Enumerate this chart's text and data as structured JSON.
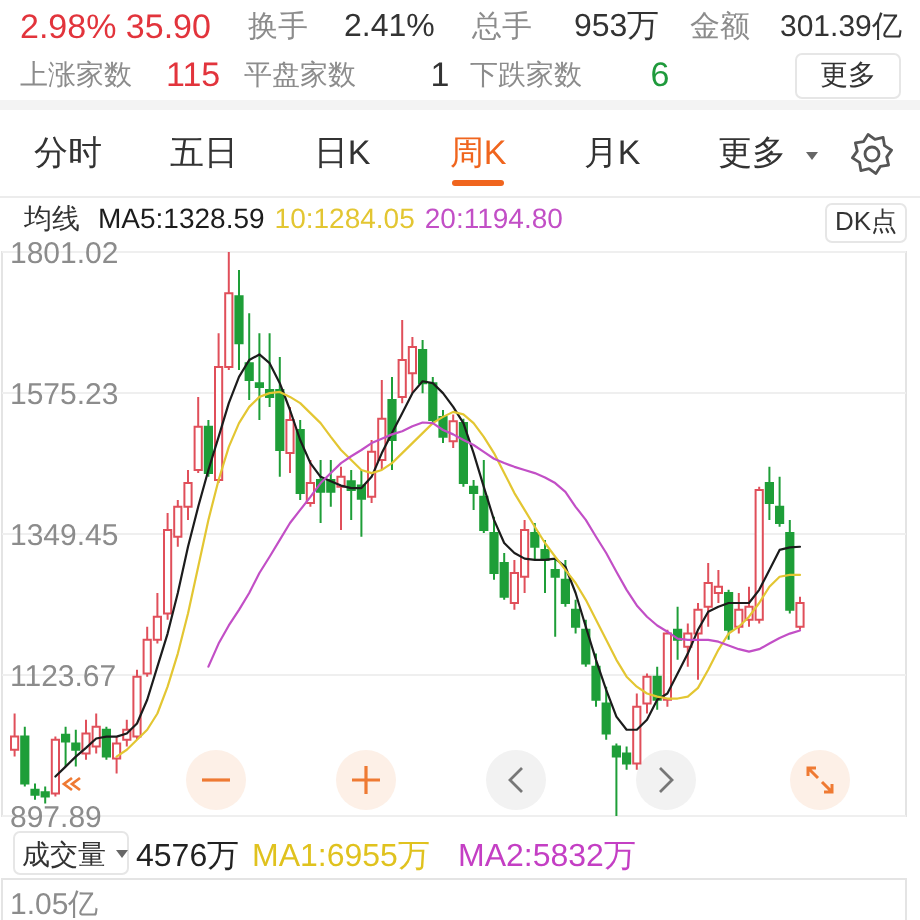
{
  "chart_data": {
    "type": "candlestick",
    "categories": [
      null,
      null,
      null,
      null,
      null,
      null,
      null,
      null,
      null,
      null,
      null,
      null,
      null,
      null,
      null,
      null,
      null,
      null,
      null,
      null,
      null,
      null,
      null,
      null,
      null,
      null,
      null,
      null,
      null,
      null,
      null,
      null,
      null,
      null,
      null,
      null,
      null,
      null,
      null,
      null,
      null,
      null,
      null,
      null,
      null,
      null,
      null,
      null,
      null,
      null,
      null,
      null,
      null,
      null,
      null,
      null,
      null,
      null,
      null,
      null,
      null,
      null,
      null,
      null,
      null,
      null,
      null,
      null,
      null,
      null,
      null,
      null,
      null,
      null,
      null,
      null,
      null,
      null
    ],
    "ohlc": [
      [
        1004,
        1062,
        993,
        1025
      ],
      [
        1025,
        1041,
        945,
        950
      ],
      [
        940,
        950,
        924,
        932
      ],
      [
        936,
        945,
        918,
        929
      ],
      [
        934,
        1025,
        929,
        1020
      ],
      [
        1028,
        1041,
        977,
        1017
      ],
      [
        1014,
        1036,
        977,
        1004
      ],
      [
        998,
        1052,
        988,
        1030
      ],
      [
        1009,
        1062,
        998,
        1041
      ],
      [
        1036,
        1041,
        988,
        993
      ],
      [
        990,
        1025,
        966,
        1014
      ],
      [
        1020,
        1052,
        1009,
        1036
      ],
      [
        1025,
        1132,
        1020,
        1121
      ],
      [
        1126,
        1201,
        1121,
        1180
      ],
      [
        1180,
        1255,
        1174,
        1217
      ],
      [
        1222,
        1383,
        1212,
        1356
      ],
      [
        1345,
        1404,
        1329,
        1393
      ],
      [
        1393,
        1452,
        1372,
        1431
      ],
      [
        1452,
        1569,
        1447,
        1521
      ],
      [
        1521,
        1532,
        1441,
        1447
      ],
      [
        1436,
        1671,
        1431,
        1617
      ],
      [
        1617,
        1801.02,
        1612,
        1735
      ],
      [
        1730,
        1772,
        1612,
        1655
      ],
      [
        1623,
        1703,
        1564,
        1596
      ],
      [
        1591,
        1671,
        1532,
        1585
      ],
      [
        1580,
        1671,
        1553,
        1569
      ],
      [
        1580,
        1633,
        1441,
        1484
      ],
      [
        1479,
        1553,
        1447,
        1532
      ],
      [
        1516,
        1532,
        1404,
        1415
      ],
      [
        1399,
        1468,
        1393,
        1431
      ],
      [
        1436,
        1468,
        1367,
        1417
      ],
      [
        1436,
        1468,
        1393,
        1417
      ],
      [
        1425,
        1457,
        1356,
        1441
      ],
      [
        1434,
        1452,
        1372,
        1420
      ],
      [
        1427,
        1452,
        1345,
        1406
      ],
      [
        1409,
        1500,
        1399,
        1481
      ],
      [
        1468,
        1596,
        1452,
        1534
      ],
      [
        1564,
        1601,
        1452,
        1500
      ],
      [
        1569,
        1692,
        1559,
        1628
      ],
      [
        1607,
        1665,
        1575,
        1649
      ],
      [
        1644,
        1660,
        1575,
        1591
      ],
      [
        1591,
        1601,
        1527,
        1532
      ],
      [
        1537,
        1548,
        1495,
        1505
      ],
      [
        1498,
        1541,
        1487,
        1530
      ],
      [
        1527,
        1534,
        1425,
        1431
      ],
      [
        1425,
        1436,
        1388,
        1415
      ],
      [
        1409,
        1468,
        1351,
        1356
      ],
      [
        1351,
        1377,
        1276,
        1287
      ],
      [
        1303,
        1319,
        1244,
        1249
      ],
      [
        1239,
        1308,
        1228,
        1287
      ],
      [
        1281,
        1372,
        1255,
        1356
      ],
      [
        1351,
        1367,
        1308,
        1329
      ],
      [
        1324,
        1340,
        1255,
        1308
      ],
      [
        1292,
        1308,
        1185,
        1281
      ],
      [
        1276,
        1308,
        1233,
        1239
      ],
      [
        1228,
        1244,
        1190,
        1201
      ],
      [
        1196,
        1212,
        1137,
        1142
      ],
      [
        1137,
        1158,
        1073,
        1084
      ],
      [
        1078,
        1105,
        1020,
        1030
      ],
      [
        1009,
        1014,
        897.89,
        993
      ],
      [
        998,
        1009,
        972,
        982
      ],
      [
        982,
        1094,
        972,
        1073
      ],
      [
        1078,
        1126,
        1062,
        1121
      ],
      [
        1121,
        1137,
        1068,
        1084
      ],
      [
        1084,
        1196,
        1073,
        1190
      ],
      [
        1196,
        1233,
        1148,
        1180
      ],
      [
        1169,
        1206,
        1137,
        1190
      ],
      [
        1190,
        1239,
        1116,
        1228
      ],
      [
        1233,
        1303,
        1201,
        1271
      ],
      [
        1255,
        1292,
        1239,
        1265
      ],
      [
        1255,
        1260,
        1180,
        1196
      ],
      [
        1201,
        1255,
        1190,
        1228
      ],
      [
        1212,
        1265,
        1201,
        1233
      ],
      [
        1212,
        1425,
        1206,
        1420
      ],
      [
        1431,
        1457,
        1372,
        1399
      ],
      [
        1393,
        1441,
        1361,
        1367
      ],
      [
        1351,
        1372,
        1222,
        1228
      ],
      [
        1201,
        1249,
        1196,
        1239
      ]
    ],
    "series": [
      {
        "type": "line",
        "name": "MA5:1328.59",
        "color": "#1c1c1c",
        "values": [
          null,
          null,
          null,
          null,
          961,
          977,
          993,
          1007,
          1022,
          1025,
          1025,
          1030,
          1046,
          1084,
          1137,
          1190,
          1255,
          1329,
          1393,
          1452,
          1505,
          1559,
          1601,
          1628,
          1637,
          1623,
          1591,
          1548,
          1500,
          1463,
          1441,
          1434,
          1427,
          1423,
          1423,
          1441,
          1479,
          1511,
          1543,
          1575,
          1594,
          1591,
          1575,
          1553,
          1527,
          1479,
          1425,
          1372,
          1335,
          1319,
          1310,
          1308,
          1308,
          1310,
          1297,
          1255,
          1201,
          1148,
          1100,
          1057,
          1036,
          1036,
          1052,
          1084,
          1094,
          1126,
          1158,
          1196,
          1225,
          1233,
          1239,
          1239,
          1239,
          1260,
          1292,
          1324,
          1328,
          1329
        ]
      },
      {
        "type": "line",
        "name": "10:1284.05",
        "color": "#e3c632",
        "values": [
          null,
          null,
          null,
          null,
          null,
          null,
          null,
          null,
          null,
          null,
          993,
          1004,
          1020,
          1036,
          1062,
          1105,
          1158,
          1222,
          1297,
          1372,
          1436,
          1489,
          1527,
          1553,
          1569,
          1575,
          1577,
          1569,
          1559,
          1543,
          1527,
          1505,
          1484,
          1468,
          1452,
          1447,
          1452,
          1463,
          1479,
          1495,
          1511,
          1527,
          1537,
          1545,
          1541,
          1527,
          1505,
          1479,
          1447,
          1415,
          1388,
          1361,
          1335,
          1313,
          1292,
          1271,
          1244,
          1212,
          1180,
          1148,
          1121,
          1105,
          1094,
          1089,
          1086,
          1086,
          1089,
          1103,
          1132,
          1164,
          1190,
          1201,
          1217,
          1239,
          1265,
          1281,
          1284,
          1284
        ]
      },
      {
        "type": "line",
        "name": "20:1194.80",
        "color": "#c24fc6",
        "values": [
          null,
          null,
          null,
          null,
          null,
          null,
          null,
          null,
          null,
          null,
          null,
          null,
          null,
          null,
          null,
          null,
          null,
          null,
          null,
          1137,
          1174,
          1203,
          1228,
          1255,
          1287,
          1313,
          1340,
          1367,
          1388,
          1409,
          1431,
          1447,
          1463,
          1474,
          1484,
          1495,
          1502,
          1509,
          1514,
          1522,
          1528,
          1527,
          1516,
          1509,
          1500,
          1492,
          1481,
          1470,
          1463,
          1457,
          1452,
          1447,
          1440,
          1431,
          1417,
          1393,
          1372,
          1345,
          1319,
          1289,
          1260,
          1235,
          1217,
          1203,
          1193,
          1182,
          1180,
          1180,
          1180,
          1177,
          1171,
          1165,
          1161,
          1165,
          1174,
          1183,
          1190,
          1195
        ]
      }
    ],
    "ylim": [
      897.89,
      1801.02
    ],
    "yticks": [
      897.89,
      1123.67,
      1349.45,
      1575.23,
      1801.02
    ],
    "grid": "y",
    "legend": "top left",
    "legend_title": "均线",
    "annotations": [
      "2.98% 35.90",
      "换手",
      "2.41%",
      "总手",
      "953万",
      "金额",
      "301.39亿",
      "上涨家数",
      "115",
      "平盘家数",
      "1",
      "下跌家数",
      "6",
      "更多",
      "分时",
      "五日",
      "日K",
      "周K",
      "月K",
      "更多",
      "DK点",
      "成交量",
      "4576万",
      "MA1:6955万",
      "MA2:5832万",
      "1.05亿"
    ]
  }
}
